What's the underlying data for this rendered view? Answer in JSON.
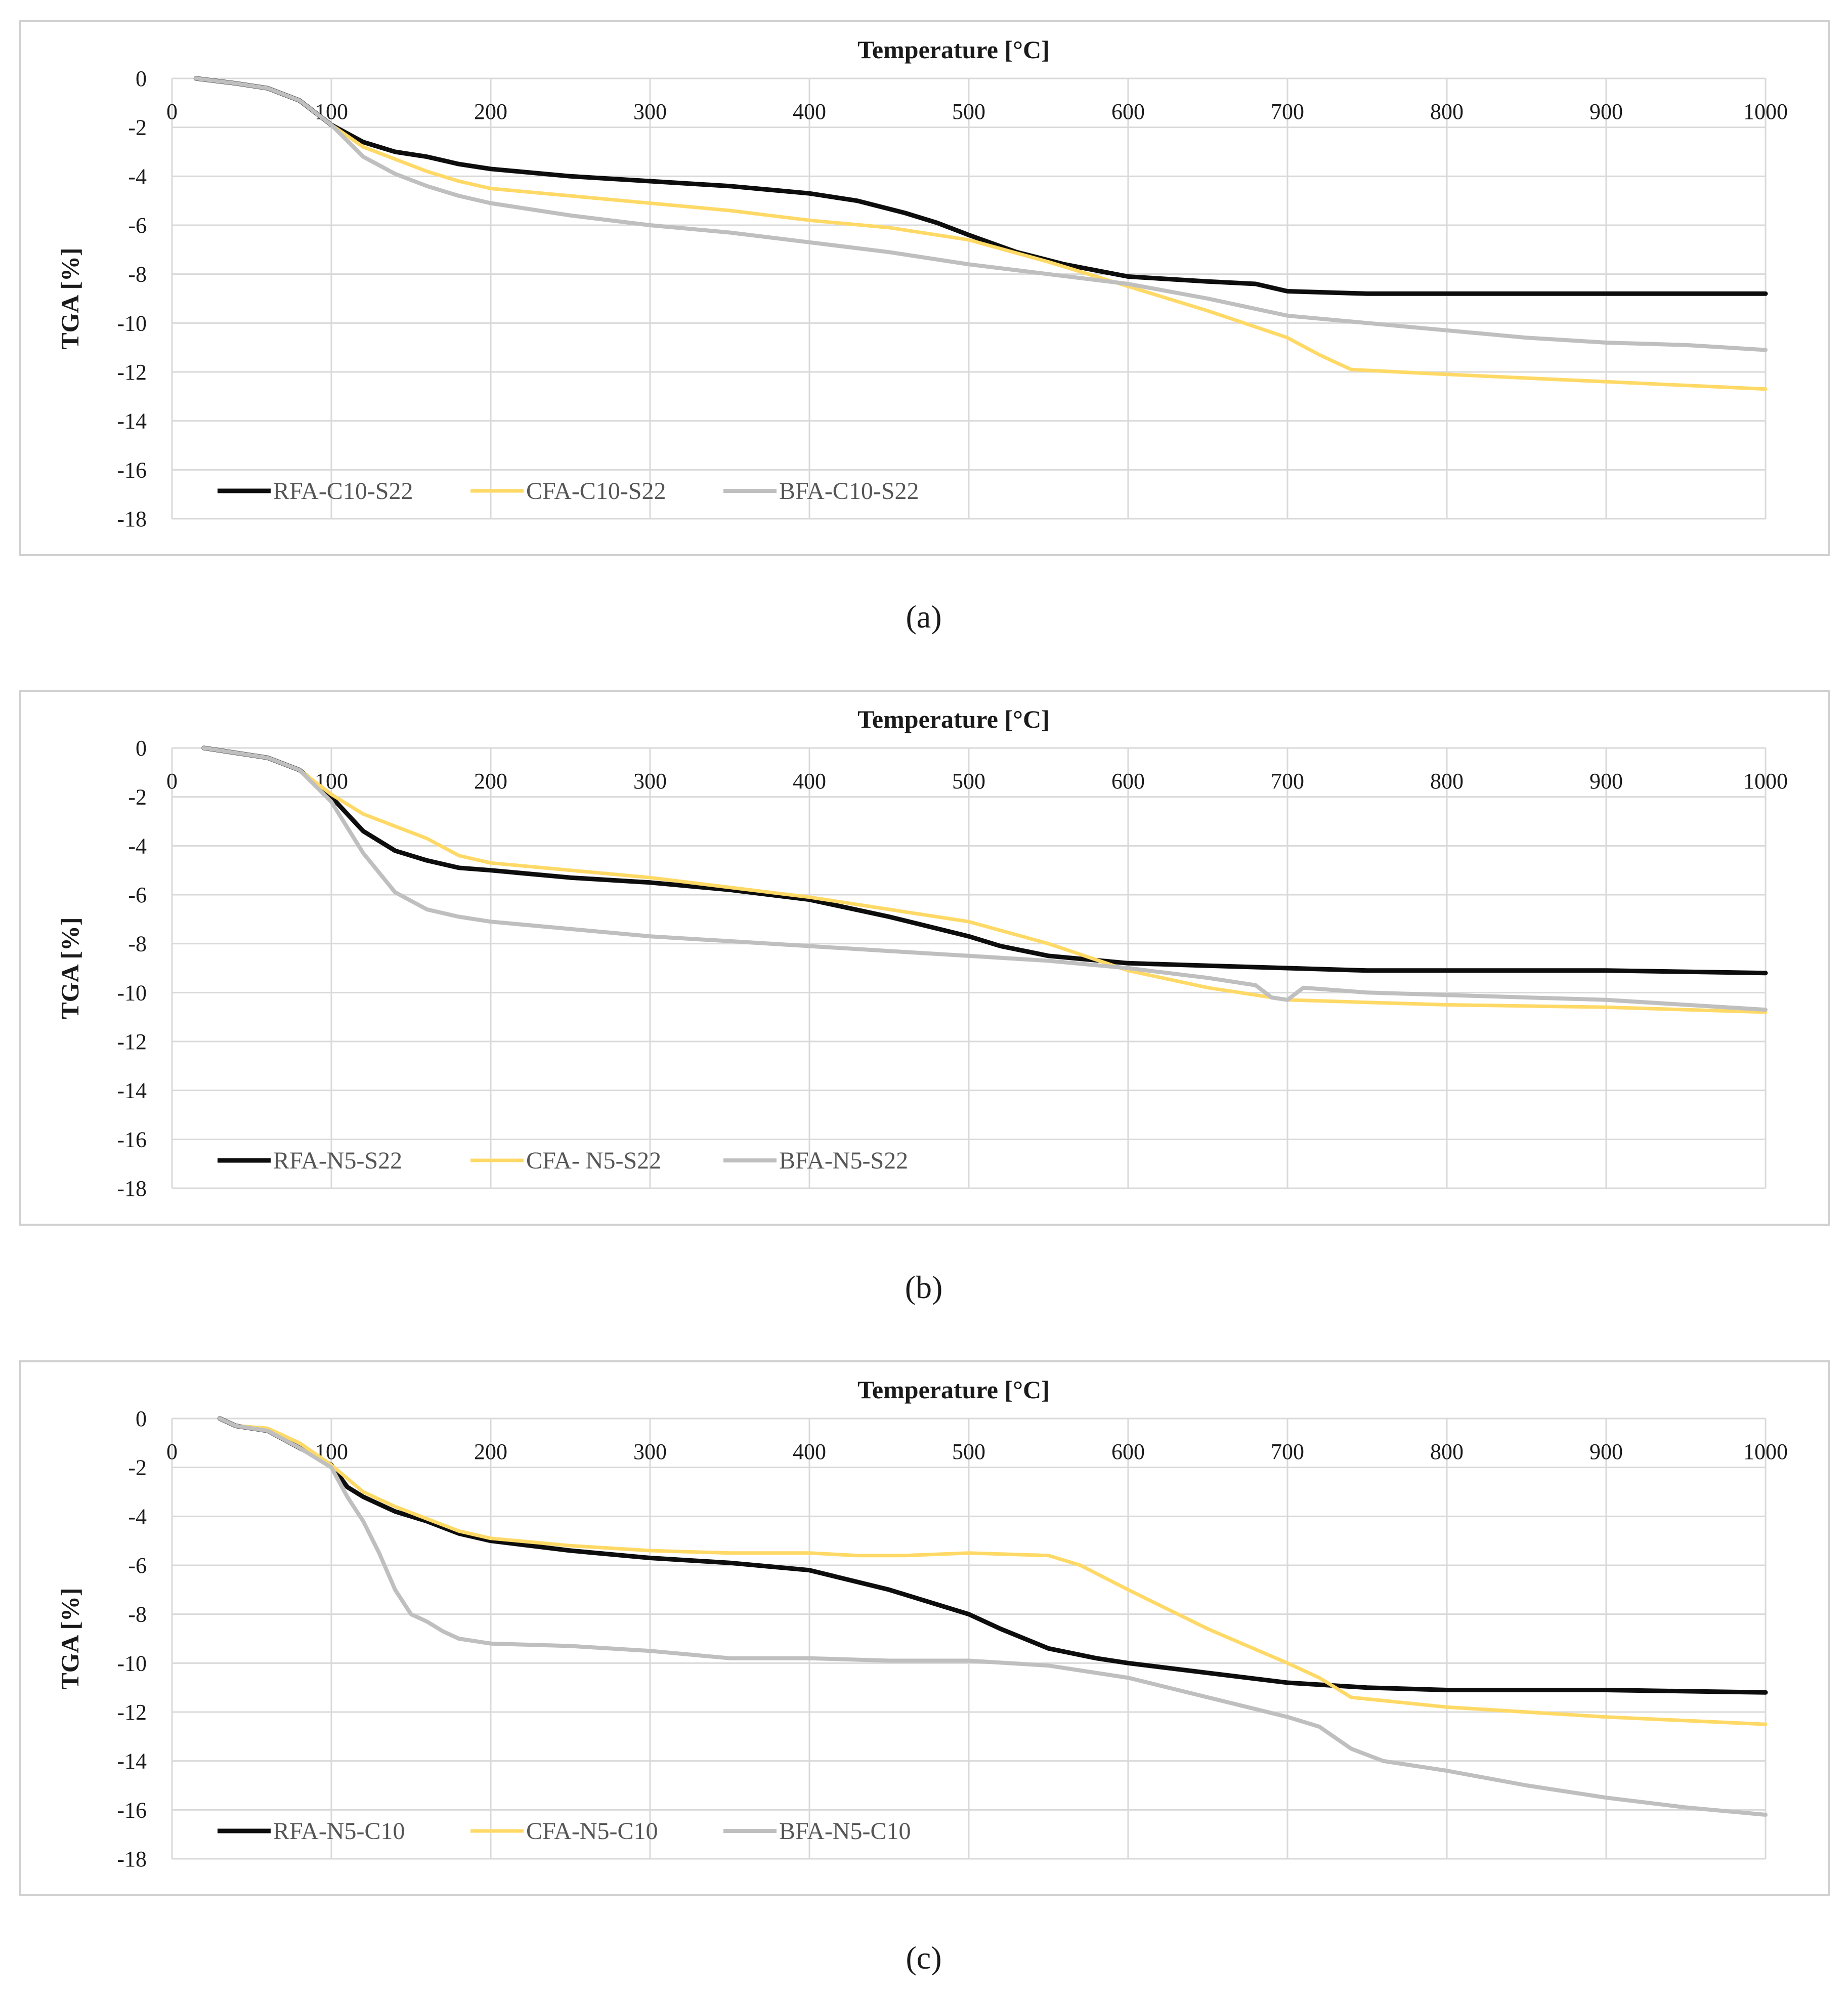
{
  "colors": {
    "RFA": "#0d0d0d",
    "CFA": "#ffd966",
    "BFA": "#bfbfbf",
    "grid": "#d9d9d9",
    "frame": "#d0d0d0"
  },
  "chart_data": [
    {
      "type": "line",
      "caption": "(a)",
      "xlabel": "Temperature [°C]",
      "ylabel": "TGA [%]",
      "xlim": [
        0,
        1000
      ],
      "ylim": [
        -18,
        0
      ],
      "xticks": [
        "0",
        "100",
        "200",
        "300",
        "400",
        "500",
        "600",
        "700",
        "800",
        "900",
        "1000"
      ],
      "yticks": [
        "0",
        "-2",
        "-4",
        "-6",
        "-8",
        "-10",
        "-12",
        "-14",
        "-16",
        "-18"
      ],
      "legend_position": "bottom-left",
      "series": [
        {
          "name": "RFA-C10-S22",
          "key": "RFA",
          "x": [
            15,
            40,
            60,
            80,
            100,
            120,
            140,
            160,
            180,
            200,
            250,
            300,
            350,
            400,
            430,
            460,
            480,
            500,
            530,
            560,
            600,
            650,
            680,
            700,
            750,
            800,
            900,
            1000
          ],
          "y": [
            0,
            -0.2,
            -0.4,
            -0.9,
            -1.9,
            -2.6,
            -3.0,
            -3.2,
            -3.5,
            -3.7,
            -4.0,
            -4.2,
            -4.4,
            -4.7,
            -5.0,
            -5.5,
            -5.9,
            -6.4,
            -7.1,
            -7.6,
            -8.1,
            -8.3,
            -8.4,
            -8.7,
            -8.8,
            -8.8,
            -8.8,
            -8.8
          ]
        },
        {
          "name": "CFA-C10-S22",
          "key": "CFA",
          "x": [
            15,
            40,
            60,
            80,
            100,
            120,
            140,
            160,
            180,
            200,
            250,
            300,
            350,
            400,
            450,
            500,
            550,
            600,
            650,
            700,
            720,
            740,
            800,
            900,
            1000
          ],
          "y": [
            0,
            -0.2,
            -0.4,
            -0.9,
            -1.9,
            -2.8,
            -3.3,
            -3.8,
            -4.2,
            -4.5,
            -4.8,
            -5.1,
            -5.4,
            -5.8,
            -6.1,
            -6.6,
            -7.5,
            -8.5,
            -9.5,
            -10.6,
            -11.3,
            -11.9,
            -12.1,
            -12.4,
            -12.7
          ]
        },
        {
          "name": "BFA-C10-S22",
          "key": "BFA",
          "x": [
            15,
            40,
            60,
            80,
            100,
            120,
            140,
            160,
            180,
            200,
            250,
            300,
            350,
            400,
            450,
            500,
            550,
            600,
            650,
            700,
            750,
            800,
            850,
            900,
            950,
            1000
          ],
          "y": [
            0,
            -0.2,
            -0.4,
            -0.9,
            -1.9,
            -3.2,
            -3.9,
            -4.4,
            -4.8,
            -5.1,
            -5.6,
            -6.0,
            -6.3,
            -6.7,
            -7.1,
            -7.6,
            -8.0,
            -8.4,
            -9.0,
            -9.7,
            -10.0,
            -10.3,
            -10.6,
            -10.8,
            -10.9,
            -11.1
          ]
        }
      ]
    },
    {
      "type": "line",
      "caption": "(b)",
      "xlabel": "Temperature [°C]",
      "ylabel": "TGA [%]",
      "xlim": [
        0,
        1000
      ],
      "ylim": [
        -18,
        0
      ],
      "xticks": [
        "0",
        "100",
        "200",
        "300",
        "400",
        "500",
        "600",
        "700",
        "800",
        "900",
        "1000"
      ],
      "yticks": [
        "0",
        "-2",
        "-4",
        "-6",
        "-8",
        "-10",
        "-12",
        "-14",
        "-16",
        "-18"
      ],
      "legend_position": "bottom-left",
      "series": [
        {
          "name": "RFA-N5-S22",
          "key": "RFA",
          "x": [
            20,
            40,
            60,
            80,
            100,
            120,
            140,
            160,
            180,
            200,
            250,
            300,
            350,
            400,
            450,
            500,
            520,
            550,
            600,
            650,
            700,
            750,
            800,
            900,
            1000
          ],
          "y": [
            0,
            -0.2,
            -0.4,
            -0.9,
            -2.0,
            -3.4,
            -4.2,
            -4.6,
            -4.9,
            -5.0,
            -5.3,
            -5.5,
            -5.8,
            -6.2,
            -6.9,
            -7.7,
            -8.1,
            -8.5,
            -8.8,
            -8.9,
            -9.0,
            -9.1,
            -9.1,
            -9.1,
            -9.2
          ]
        },
        {
          "name": "CFA- N5-S22",
          "key": "CFA",
          "x": [
            20,
            40,
            60,
            80,
            100,
            120,
            140,
            160,
            180,
            200,
            250,
            300,
            350,
            400,
            450,
            500,
            550,
            600,
            650,
            700,
            750,
            800,
            900,
            1000
          ],
          "y": [
            0,
            -0.2,
            -0.4,
            -0.9,
            -1.9,
            -2.7,
            -3.2,
            -3.7,
            -4.4,
            -4.7,
            -5.0,
            -5.3,
            -5.7,
            -6.1,
            -6.6,
            -7.1,
            -8.0,
            -9.1,
            -9.8,
            -10.3,
            -10.4,
            -10.5,
            -10.6,
            -10.8
          ]
        },
        {
          "name": "BFA-N5-S22",
          "key": "BFA",
          "x": [
            20,
            40,
            60,
            80,
            100,
            120,
            140,
            160,
            180,
            200,
            250,
            300,
            350,
            400,
            450,
            500,
            550,
            600,
            650,
            680,
            690,
            700,
            710,
            750,
            800,
            900,
            1000
          ],
          "y": [
            0,
            -0.2,
            -0.4,
            -0.9,
            -2.2,
            -4.3,
            -5.9,
            -6.6,
            -6.9,
            -7.1,
            -7.4,
            -7.7,
            -7.9,
            -8.1,
            -8.3,
            -8.5,
            -8.7,
            -9.0,
            -9.4,
            -9.7,
            -10.2,
            -10.3,
            -9.8,
            -10.0,
            -10.1,
            -10.3,
            -10.7
          ]
        }
      ]
    },
    {
      "type": "line",
      "caption": "(c)",
      "xlabel": "Temperature [°C]",
      "ylabel": "TGA [%]",
      "xlim": [
        0,
        1000
      ],
      "ylim": [
        -18,
        0
      ],
      "xticks": [
        "0",
        "100",
        "200",
        "300",
        "400",
        "500",
        "600",
        "700",
        "800",
        "900",
        "1000"
      ],
      "yticks": [
        "0",
        "-2",
        "-4",
        "-6",
        "-8",
        "-10",
        "-12",
        "-14",
        "-16",
        "-18"
      ],
      "legend_position": "bottom-left",
      "series": [
        {
          "name": "RFA-N5-C10",
          "key": "RFA",
          "x": [
            30,
            40,
            60,
            80,
            100,
            110,
            120,
            140,
            160,
            180,
            200,
            250,
            300,
            350,
            400,
            450,
            500,
            520,
            550,
            580,
            600,
            650,
            700,
            750,
            800,
            900,
            1000
          ],
          "y": [
            0,
            -0.3,
            -0.5,
            -1.2,
            -1.9,
            -2.8,
            -3.2,
            -3.8,
            -4.2,
            -4.7,
            -5.0,
            -5.4,
            -5.7,
            -5.9,
            -6.2,
            -7.0,
            -8.0,
            -8.6,
            -9.4,
            -9.8,
            -10.0,
            -10.4,
            -10.8,
            -11.0,
            -11.1,
            -11.1,
            -11.2
          ]
        },
        {
          "name": "CFA-N5-C10",
          "key": "CFA",
          "x": [
            30,
            40,
            60,
            80,
            100,
            120,
            140,
            160,
            180,
            200,
            250,
            300,
            350,
            400,
            430,
            460,
            500,
            550,
            570,
            600,
            650,
            700,
            720,
            740,
            800,
            900,
            1000
          ],
          "y": [
            0,
            -0.3,
            -0.4,
            -1.0,
            -1.9,
            -3.0,
            -3.6,
            -4.1,
            -4.6,
            -4.9,
            -5.2,
            -5.4,
            -5.5,
            -5.5,
            -5.6,
            -5.6,
            -5.5,
            -5.6,
            -6.0,
            -7.0,
            -8.6,
            -10.0,
            -10.6,
            -11.4,
            -11.8,
            -12.2,
            -12.5
          ]
        },
        {
          "name": "BFA-N5-C10",
          "key": "BFA",
          "x": [
            30,
            40,
            60,
            80,
            100,
            110,
            120,
            130,
            140,
            150,
            160,
            170,
            180,
            200,
            250,
            300,
            350,
            400,
            450,
            500,
            550,
            600,
            650,
            700,
            720,
            740,
            760,
            800,
            850,
            900,
            950,
            1000
          ],
          "y": [
            0,
            -0.3,
            -0.5,
            -1.2,
            -2.0,
            -3.2,
            -4.2,
            -5.5,
            -7.0,
            -8.0,
            -8.3,
            -8.7,
            -9.0,
            -9.2,
            -9.3,
            -9.5,
            -9.8,
            -9.8,
            -9.9,
            -9.9,
            -10.1,
            -10.6,
            -11.4,
            -12.2,
            -12.6,
            -13.5,
            -14.0,
            -14.4,
            -15.0,
            -15.5,
            -15.9,
            -16.2
          ]
        }
      ]
    }
  ]
}
